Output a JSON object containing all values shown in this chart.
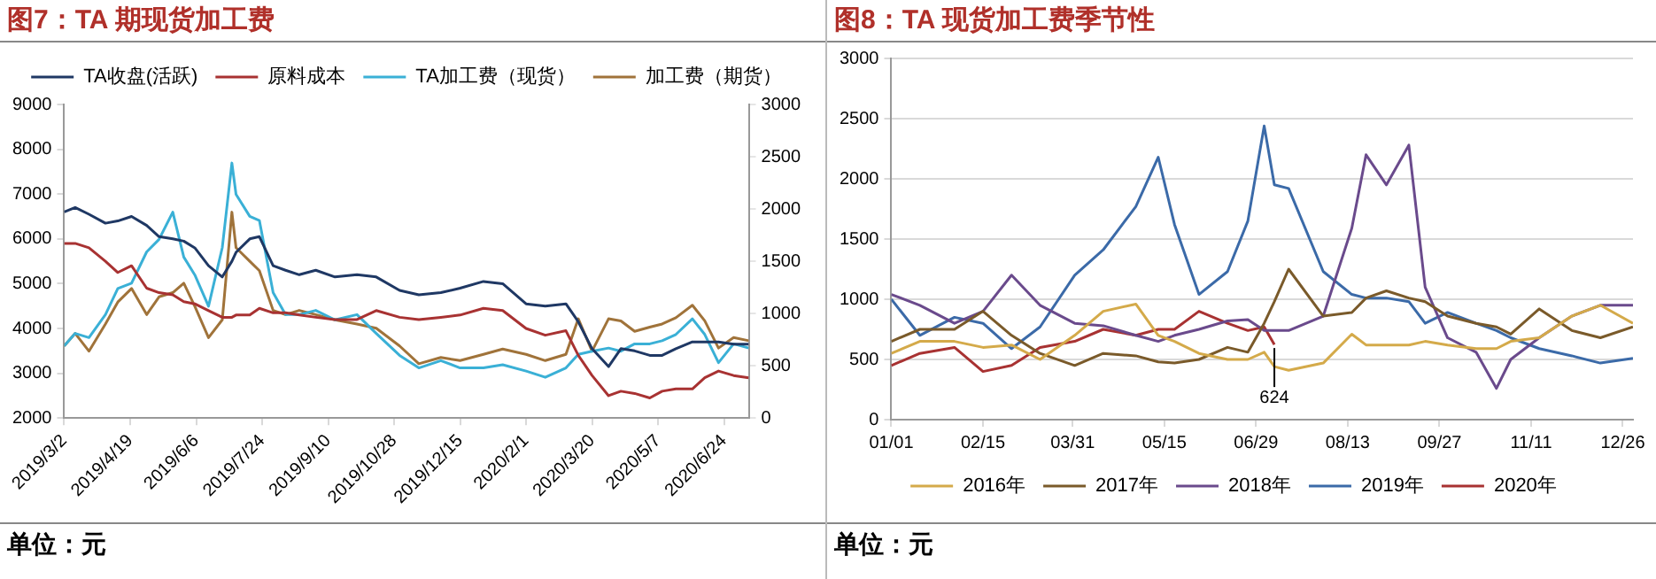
{
  "chart_data": [
    {
      "type": "line",
      "title": "图7：TA 期现货加工费",
      "annotations": [
        "单位：元"
      ],
      "legend": "top",
      "grid": false,
      "x": [
        "2019-03-02",
        "2019-03-10",
        "2019-03-20",
        "2019-04-01",
        "2019-04-10",
        "2019-04-20",
        "2019-05-01",
        "2019-05-10",
        "2019-05-20",
        "2019-05-28",
        "2019-06-05",
        "2019-06-15",
        "2019-06-25",
        "2019-07-02",
        "2019-07-05",
        "2019-07-15",
        "2019-07-22",
        "2019-08-01",
        "2019-08-10",
        "2019-08-20",
        "2019-09-01",
        "2019-09-15",
        "2019-10-01",
        "2019-10-15",
        "2019-11-01",
        "2019-11-15",
        "2019-12-01",
        "2019-12-15",
        "2020-01-01",
        "2020-01-15",
        "2020-02-01",
        "2020-02-15",
        "2020-03-01",
        "2020-03-10",
        "2020-03-20",
        "2020-04-01",
        "2020-04-10",
        "2020-04-20",
        "2020-05-01",
        "2020-05-10",
        "2020-05-20",
        "2020-06-01",
        "2020-06-10",
        "2020-06-20",
        "2020-07-01",
        "2020-07-12"
      ],
      "xlim": [
        "2019-03-02",
        "2020-07-12"
      ],
      "xticks": [
        {
          "value": "2019-03-02",
          "label": "2019/3/2"
        },
        {
          "value": "2019-04-19",
          "label": "2019/4/19"
        },
        {
          "value": "2019-06-06",
          "label": "2019/6/6"
        },
        {
          "value": "2019-07-24",
          "label": "2019/7/24"
        },
        {
          "value": "2019-09-10",
          "label": "2019/9/10"
        },
        {
          "value": "2019-10-28",
          "label": "2019/10/28"
        },
        {
          "value": "2019-12-15",
          "label": "2019/12/15"
        },
        {
          "value": "2020-02-01",
          "label": "2020/2/1"
        },
        {
          "value": "2020-03-20",
          "label": "2020/3/20"
        },
        {
          "value": "2020-05-07",
          "label": "2020/5/7"
        },
        {
          "value": "2020-06-24",
          "label": "2020/6/24"
        }
      ],
      "ylim": [
        2000,
        9000
      ],
      "yticks": [
        2000,
        3000,
        4000,
        5000,
        6000,
        7000,
        8000,
        9000
      ],
      "y2lim": [
        0,
        3000
      ],
      "y2ticks": [
        0,
        500,
        1000,
        1500,
        2000,
        2500,
        3000
      ],
      "series": [
        {
          "name": "TA收盘(活跃)",
          "color": "#1f3864",
          "values": [
            6600,
            6700,
            6550,
            6350,
            6400,
            6500,
            6300,
            6050,
            6000,
            5950,
            5800,
            5400,
            5150,
            5500,
            5700,
            6000,
            6050,
            5400,
            5300,
            5200,
            5300,
            5150,
            5200,
            5150,
            4850,
            4750,
            4800,
            4900,
            5050,
            5000,
            4550,
            4500,
            4550,
            4150,
            3550,
            3150,
            3550,
            3500,
            3400,
            3400,
            3550,
            3700,
            3700,
            3700,
            3650,
            3650
          ]
        },
        {
          "name": "原料成本",
          "color": "#a83232",
          "values": [
            5900,
            5900,
            5800,
            5500,
            5250,
            5400,
            4900,
            4800,
            4750,
            4600,
            4550,
            4400,
            4250,
            4250,
            4300,
            4300,
            4450,
            4350,
            4350,
            4300,
            4250,
            4200,
            4200,
            4400,
            4250,
            4200,
            4250,
            4300,
            4450,
            4400,
            4000,
            3850,
            3950,
            3400,
            2950,
            2500,
            2600,
            2550,
            2450,
            2600,
            2650,
            2650,
            2900,
            3050,
            2950,
            2900
          ]
        },
        {
          "name": "TA加工费（现货）",
          "color": "#3ab0d6",
          "axis": "y2",
          "values": [
            690,
            810,
            770,
            990,
            1240,
            1290,
            1590,
            1710,
            1970,
            1540,
            1370,
            1070,
            1630,
            2440,
            2140,
            1930,
            1890,
            1200,
            990,
            990,
            1030,
            940,
            990,
            810,
            600,
            480,
            550,
            480,
            480,
            510,
            450,
            390,
            480,
            610,
            640,
            670,
            640,
            710,
            710,
            740,
            800,
            950,
            800,
            530,
            710,
            670
          ]
        },
        {
          "name": "加工费（期货）",
          "color": "#a0733a",
          "axis": "y2",
          "values": [
            690,
            810,
            640,
            900,
            1110,
            1240,
            990,
            1160,
            1200,
            1290,
            1070,
            770,
            940,
            1970,
            1630,
            1500,
            1410,
            1030,
            990,
            1030,
            990,
            940,
            900,
            860,
            690,
            520,
            580,
            550,
            610,
            660,
            610,
            550,
            610,
            950,
            640,
            950,
            930,
            830,
            870,
            900,
            960,
            1080,
            930,
            670,
            770,
            740
          ]
        }
      ]
    },
    {
      "type": "line",
      "title": "图8：TA 现货加工费季节性",
      "annotations": [
        "单位：元",
        {
          "text": "624",
          "x": "--07-08",
          "y": 624
        }
      ],
      "legend": "bottom",
      "grid": "y",
      "x": [
        "--01-01",
        "--01-15",
        "--02-01",
        "--02-15",
        "--03-01",
        "--03-15",
        "--04-01",
        "--04-15",
        "--05-01",
        "--05-12",
        "--05-20",
        "--06-01",
        "--06-15",
        "--06-25",
        "--07-03",
        "--07-08",
        "--07-15",
        "--08-01",
        "--08-15",
        "--08-22",
        "--09-01",
        "--09-12",
        "--09-20",
        "--10-01",
        "--10-15",
        "--10-25",
        "--11-01",
        "--11-15",
        "--12-01",
        "--12-15",
        "--12-31"
      ],
      "xlim": [
        "--01-01",
        "--12-31"
      ],
      "xticks": [
        {
          "value": "--01-01",
          "label": "01/01"
        },
        {
          "value": "--02-15",
          "label": "02/15"
        },
        {
          "value": "--03-31",
          "label": "03/31"
        },
        {
          "value": "--05-15",
          "label": "05/15"
        },
        {
          "value": "--06-29",
          "label": "06/29"
        },
        {
          "value": "--08-13",
          "label": "08/13"
        },
        {
          "value": "--09-27",
          "label": "09/27"
        },
        {
          "value": "--11-11",
          "label": "11/11"
        },
        {
          "value": "--12-26",
          "label": "12/26"
        }
      ],
      "ylim": [
        0,
        3000
      ],
      "yticks": [
        0,
        500,
        1000,
        1500,
        2000,
        2500,
        3000
      ],
      "series": [
        {
          "name": "2016年",
          "color": "#d4aa4a",
          "values": [
            550,
            650,
            650,
            600,
            620,
            500,
            700,
            900,
            960,
            700,
            650,
            550,
            500,
            500,
            560,
            440,
            410,
            470,
            710,
            620,
            620,
            620,
            650,
            620,
            590,
            590,
            650,
            680,
            860,
            950,
            800
          ]
        },
        {
          "name": "2017年",
          "color": "#7a5a2a",
          "values": [
            650,
            750,
            750,
            900,
            700,
            550,
            450,
            550,
            530,
            480,
            470,
            500,
            600,
            560,
            800,
            980,
            1250,
            860,
            890,
            1010,
            1070,
            1010,
            980,
            860,
            800,
            770,
            710,
            920,
            740,
            680,
            770
          ]
        },
        {
          "name": "2018年",
          "color": "#6a4a8c",
          "values": [
            1040,
            950,
            800,
            900,
            1200,
            950,
            800,
            780,
            700,
            650,
            700,
            750,
            820,
            830,
            740,
            740,
            740,
            860,
            1590,
            2200,
            1950,
            2280,
            1100,
            680,
            560,
            260,
            500,
            680,
            860,
            950,
            950
          ]
        },
        {
          "name": "2019年",
          "color": "#3b6aa8",
          "values": [
            1000,
            700,
            850,
            800,
            590,
            770,
            1200,
            1410,
            1770,
            2180,
            1620,
            1040,
            1230,
            1650,
            2440,
            1950,
            1920,
            1230,
            1040,
            1010,
            1010,
            980,
            800,
            890,
            800,
            740,
            680,
            590,
            530,
            470,
            510
          ]
        },
        {
          "name": "2020年",
          "color": "#a83232",
          "values": [
            450,
            550,
            600,
            400,
            450,
            600,
            650,
            750,
            700,
            750,
            750,
            900,
            800,
            740,
            770,
            624,
            null,
            null,
            null,
            null,
            null,
            null,
            null,
            null,
            null,
            null,
            null,
            null,
            null,
            null,
            null
          ]
        }
      ]
    }
  ]
}
